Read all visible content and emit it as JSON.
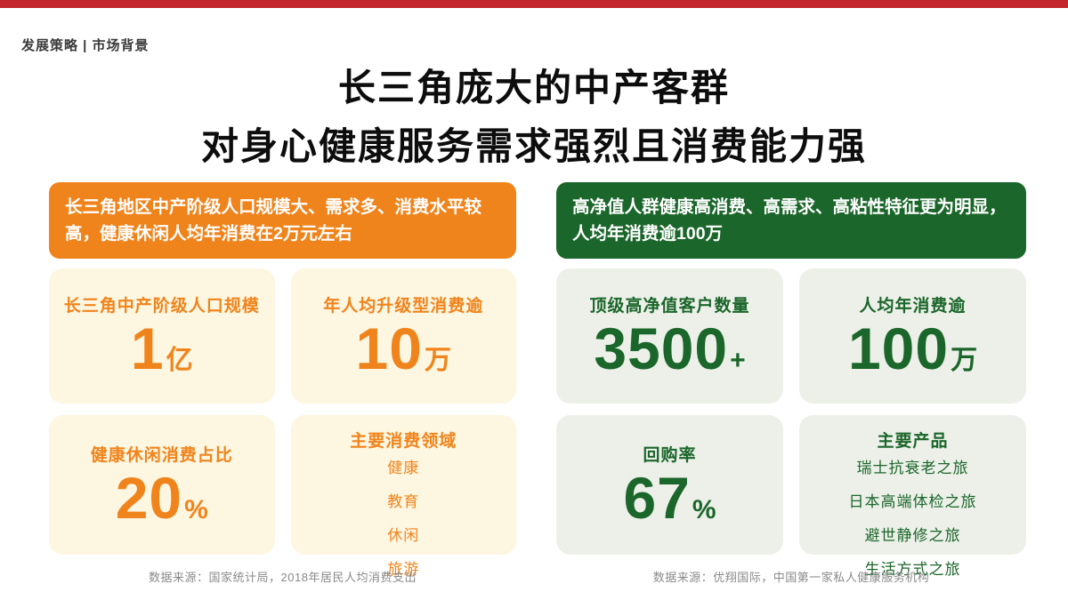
{
  "top_bar": {
    "color": "#C1272D"
  },
  "breadcrumb": "发展策略 | 市场背景",
  "title": {
    "line1": "长三角庞大的中产客群",
    "line2": "对身心健康服务需求强烈且消费能力强"
  },
  "columns": [
    {
      "id": "middle-class",
      "accent_color": "#F0841C",
      "card_bg_color": "#FDF6E1",
      "header": "长三角地区中产阶级人口规模大、需求多、消费水平较高，健康休闲人均年消费在2万元左右",
      "cards": [
        {
          "label": "长三角中产阶级人口规模",
          "value": "1",
          "suffix": "亿"
        },
        {
          "label": "年人均升级型消费逾",
          "value": "10",
          "suffix": "万"
        },
        {
          "label": "健康休闲消费占比",
          "value": "20",
          "suffix": "%"
        },
        {
          "title": "主要消费领域",
          "items": [
            "健康",
            "教育",
            "休闲",
            "旅游"
          ]
        }
      ],
      "source": "数据来源：国家统计局，2018年居民人均消费支出"
    },
    {
      "id": "high-net-worth",
      "accent_color": "#1B662A",
      "card_bg_color": "#ECF0E9",
      "header": "高净值人群健康高消费、高需求、高粘性特征更为明显，人均年消费逾100万",
      "cards": [
        {
          "label": "顶级高净值客户数量",
          "value": "3500",
          "suffix": "+"
        },
        {
          "label": "人均年消费逾",
          "value": "100",
          "suffix": "万"
        },
        {
          "label": "回购率",
          "value": "67",
          "suffix": "%"
        },
        {
          "title": "主要产品",
          "items": [
            "瑞士抗衰老之旅",
            "日本高端体检之旅",
            "避世静修之旅",
            "生活方式之旅"
          ]
        }
      ],
      "source": "数据来源：优翔国际，中国第一家私人健康服务机构"
    }
  ]
}
